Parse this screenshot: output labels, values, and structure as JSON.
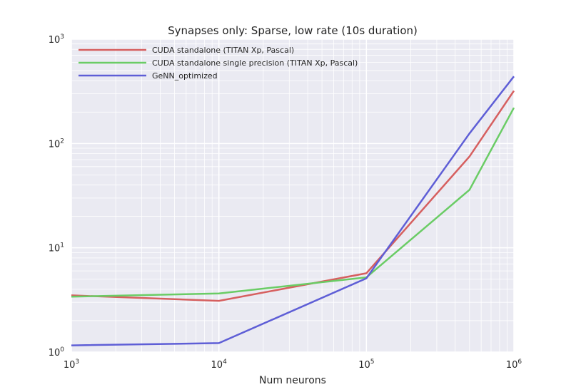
{
  "chart_data": {
    "type": "line",
    "title": "Synapses only: Sparse, low rate (10s duration)",
    "xlabel": "Num neurons",
    "ylabel": "",
    "xscale": "log",
    "yscale": "log",
    "xlim": [
      1000,
      1000000
    ],
    "ylim": [
      1,
      1000
    ],
    "grid": true,
    "legend_position": "top-left",
    "x_ticks": [
      {
        "base": "10",
        "exp": "3",
        "value": 1000
      },
      {
        "base": "10",
        "exp": "4",
        "value": 10000
      },
      {
        "base": "10",
        "exp": "5",
        "value": 100000
      },
      {
        "base": "10",
        "exp": "6",
        "value": 1000000
      }
    ],
    "y_ticks": [
      {
        "base": "10",
        "exp": "0",
        "value": 1
      },
      {
        "base": "10",
        "exp": "1",
        "value": 10
      },
      {
        "base": "10",
        "exp": "2",
        "value": 100
      },
      {
        "base": "10",
        "exp": "3",
        "value": 1000
      }
    ],
    "series": [
      {
        "name": "CUDA standalone (TITAN Xp, Pascal)",
        "color": "#d65f5f",
        "x": [
          1000,
          10000,
          100000,
          500000,
          1000000
        ],
        "y": [
          3.5,
          3.1,
          5.7,
          75,
          320
        ]
      },
      {
        "name": "CUDA standalone single precision (TITAN Xp, Pascal)",
        "color": "#6acc65",
        "x": [
          1000,
          10000,
          100000,
          500000,
          1000000
        ],
        "y": [
          3.4,
          3.65,
          5.2,
          36,
          220
        ]
      },
      {
        "name": "GeNN_optimized",
        "color": "#5e5ed6",
        "x": [
          1000,
          10000,
          100000,
          500000,
          1000000
        ],
        "y": [
          1.16,
          1.22,
          5.1,
          125,
          440
        ]
      }
    ]
  }
}
